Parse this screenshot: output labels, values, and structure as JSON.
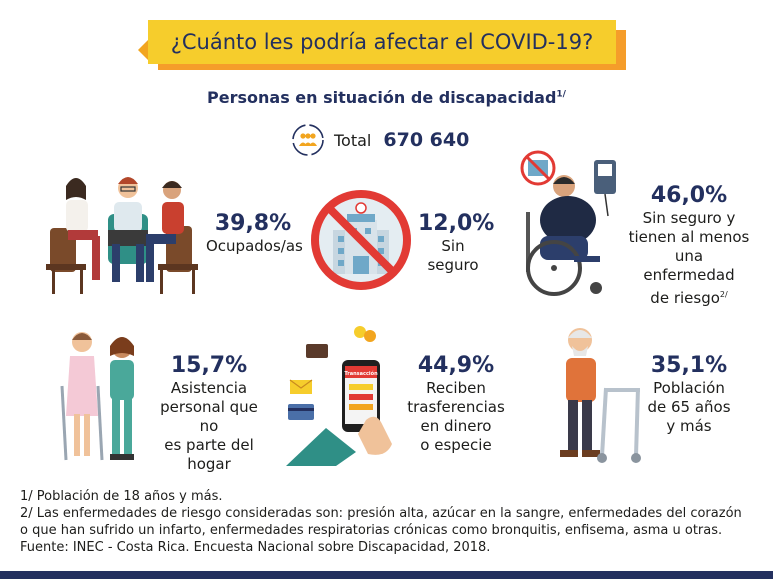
{
  "header": {
    "title": "¿Cuánto les podría afectar el COVID-19?"
  },
  "subtitle": {
    "text": "Personas en situación de discapacidad",
    "note": "1/"
  },
  "total": {
    "icon": "people-group-icon",
    "label": "Total",
    "value": "670 640"
  },
  "stats": [
    {
      "percent": "39,8%",
      "lines": [
        "Ocupados/as"
      ],
      "icon": "office-workers-icon"
    },
    {
      "percent": "12,0%",
      "lines": [
        "Sin",
        "seguro"
      ],
      "icon": "hospital-prohibited-icon"
    },
    {
      "percent": "46,0%",
      "lines": [
        "Sin seguro y",
        "tienen al menos",
        "una enfermedad",
        "de riesgo"
      ],
      "note": "2/",
      "icon": "wheelchair-person-icon"
    },
    {
      "percent": "15,7%",
      "lines": [
        "Asistencia",
        "personal que no",
        "es parte del hogar"
      ],
      "icon": "caregiver-icon"
    },
    {
      "percent": "44,9%",
      "lines": [
        "Reciben",
        "trasferencias",
        "en dinero",
        "o especie"
      ],
      "icon": "phone-transaction-icon",
      "phone_label": "Transacción"
    },
    {
      "percent": "35,1%",
      "lines": [
        "Población",
        "de 65 años",
        "y más"
      ],
      "icon": "elderly-walker-icon"
    }
  ],
  "footer": {
    "notes": [
      "1/  Población de 18 años y más.",
      "2/ Las enfermedades de riesgo consideradas son: presión alta, azúcar en la sangre, enfermedades del corazón",
      "o que han sufrido un infarto, enfermedades respiratorias crónicas como bronquitis, enfisema, asma u otras.",
      "Fuente: INEC - Costa Rica. Encuesta Nacional sobre Discapacidad, 2018."
    ]
  },
  "colors": {
    "banner": "#f6cd2c",
    "banner_shadow": "#f59d2a",
    "navy": "#23305f",
    "prohibited_red": "#e23a34"
  }
}
